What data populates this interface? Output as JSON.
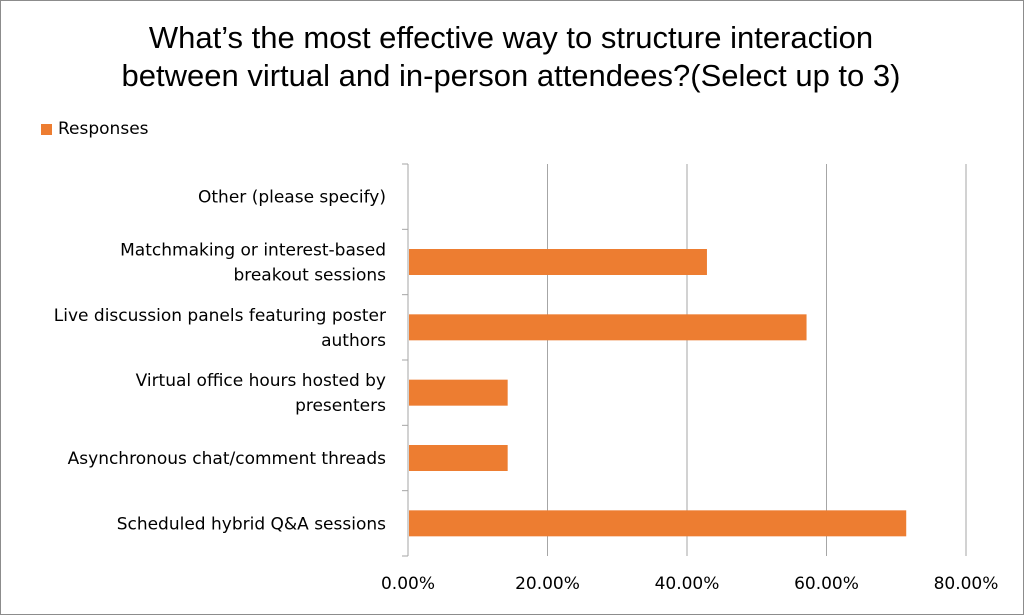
{
  "chart_data": {
    "type": "bar",
    "orientation": "horizontal",
    "title": "What’s the most effective way to structure interaction between virtual and in-person attendees?(Select up to 3)",
    "categories": [
      [
        "Scheduled hybrid Q&A sessions"
      ],
      [
        "Asynchronous chat/comment threads"
      ],
      [
        "Virtual office hours hosted by",
        "presenters"
      ],
      [
        "Live discussion panels featuring poster",
        "authors"
      ],
      [
        "Matchmaking or interest-based",
        "breakout sessions"
      ],
      [
        "Other (please specify)"
      ]
    ],
    "series": [
      {
        "name": "Responses",
        "values": [
          71.43,
          14.29,
          14.29,
          57.14,
          42.86,
          0
        ]
      }
    ],
    "xlim": [
      0,
      80
    ],
    "xticks": [
      "0.00%",
      "20.00%",
      "40.00%",
      "60.00%",
      "80.00%"
    ],
    "grid": true,
    "legend": "top-left",
    "colors": {
      "bar": "#ED7D31",
      "grid": "#a6a6a6",
      "axis": "#a6a6a6"
    }
  }
}
